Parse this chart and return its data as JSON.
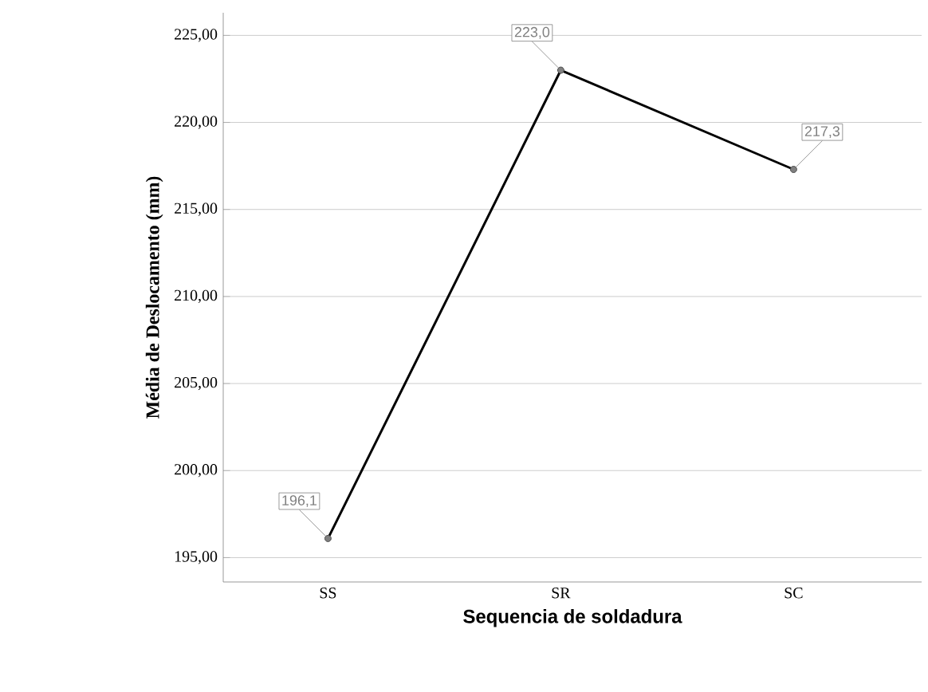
{
  "chart_data": {
    "type": "line",
    "xlabel": "Sequencia de soldadura",
    "ylabel": "Média de Deslocamento (mm)",
    "categories": [
      "SS",
      "SR",
      "SC"
    ],
    "values": [
      196.1,
      223.0,
      217.3
    ],
    "value_labels": [
      "196,1",
      "223,0",
      "217,3"
    ],
    "color": "#000000",
    "marker": "circle",
    "line_style": "solid",
    "grid": "y",
    "ylim": [
      193.6,
      226.3
    ],
    "yticks": [
      {
        "value": 195,
        "label": "195,00"
      },
      {
        "value": 200,
        "label": "200,00"
      },
      {
        "value": 205,
        "label": "205,00"
      },
      {
        "value": 210,
        "label": "210,00"
      },
      {
        "value": 215,
        "label": "215,00"
      },
      {
        "value": 220,
        "label": "220,00"
      },
      {
        "value": 225,
        "label": "225,00"
      }
    ]
  }
}
